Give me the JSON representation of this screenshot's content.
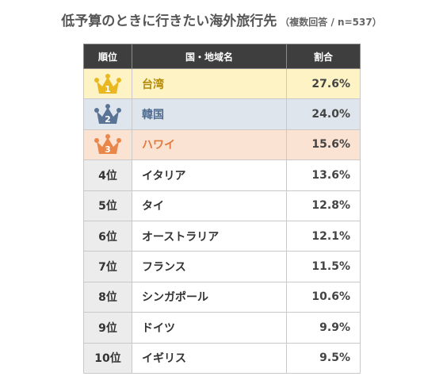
{
  "title": "低予算のときに行きたい海外旅行先",
  "subtitle": "（複数回答 / n=537）",
  "colors": {
    "gold": "#e9b820",
    "silver": "#5a7496",
    "bronze": "#e9874a",
    "header_bg": "#3e3e3e"
  },
  "chart_data": {
    "type": "table",
    "title": "低予算のときに行きたい海外旅行先",
    "subtitle": "（複数回答 / n=537）",
    "columns": [
      "順位",
      "国・地域名",
      "割合"
    ],
    "rows": [
      {
        "rank": "1",
        "name": "台湾",
        "percent": "27.6%",
        "value": 27.6,
        "badge": "gold-crown-icon"
      },
      {
        "rank": "2",
        "name": "韓国",
        "percent": "24.0%",
        "value": 24.0,
        "badge": "silver-crown-icon"
      },
      {
        "rank": "3",
        "name": "ハワイ",
        "percent": "15.6%",
        "value": 15.6,
        "badge": "bronze-crown-icon"
      },
      {
        "rank": "4位",
        "name": "イタリア",
        "percent": "13.6%",
        "value": 13.6
      },
      {
        "rank": "5位",
        "name": "タイ",
        "percent": "12.8%",
        "value": 12.8
      },
      {
        "rank": "6位",
        "name": "オーストラリア",
        "percent": "12.1%",
        "value": 12.1
      },
      {
        "rank": "7位",
        "name": "フランス",
        "percent": "11.5%",
        "value": 11.5
      },
      {
        "rank": "8位",
        "name": "シンガポール",
        "percent": "10.6%",
        "value": 10.6
      },
      {
        "rank": "9位",
        "name": "ドイツ",
        "percent": "9.9%",
        "value": 9.9
      },
      {
        "rank": "10位",
        "name": "イギリス",
        "percent": "9.5%",
        "value": 9.5
      }
    ]
  }
}
